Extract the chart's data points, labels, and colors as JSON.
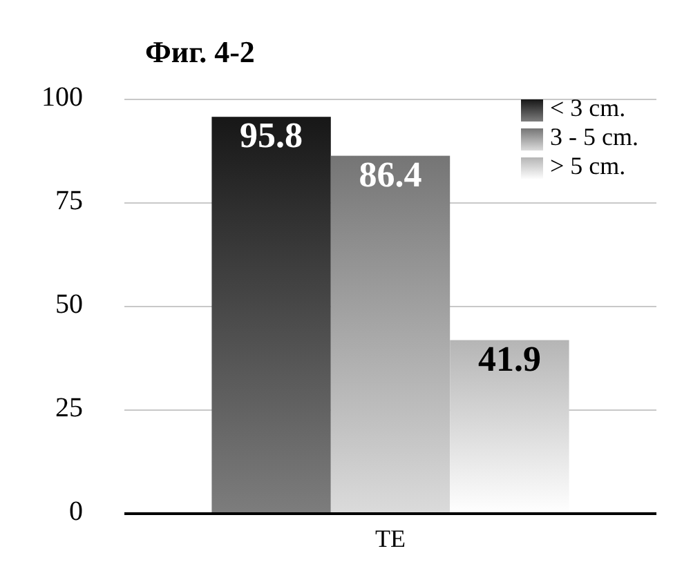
{
  "chart_data": {
    "type": "bar",
    "title": "Фиг. 4-2",
    "categories": [
      "TE"
    ],
    "series": [
      {
        "name": "< 3 cm.",
        "color": "#4a4a4a",
        "values": [
          95.8
        ]
      },
      {
        "name": "3 - 5 cm.",
        "color": "#a8a8a8",
        "values": [
          86.4
        ]
      },
      {
        "name": "> 5 cm.",
        "color": "#e8e8e8",
        "values": [
          41.9
        ]
      }
    ],
    "ylim": [
      0,
      100
    ],
    "yticks": [
      0,
      25,
      50,
      75,
      100
    ],
    "grid": "y",
    "legend": "top right",
    "data_labels": true
  }
}
